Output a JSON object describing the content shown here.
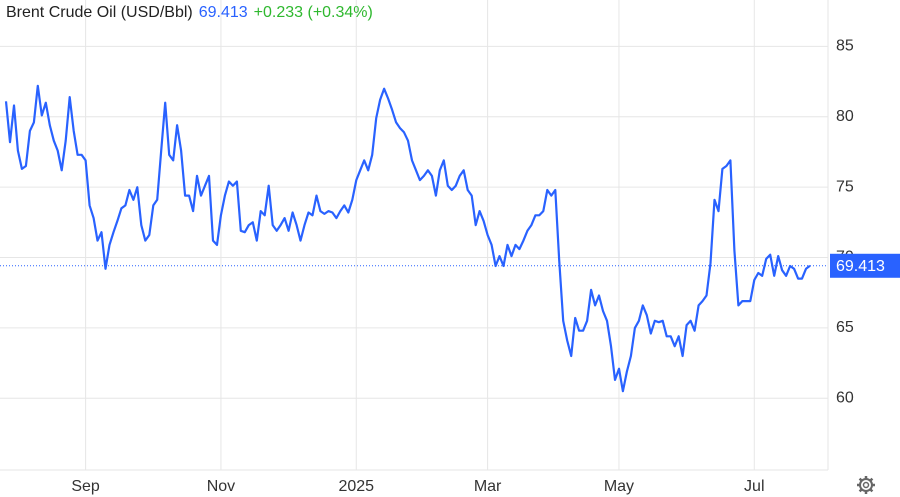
{
  "chart_data": {
    "type": "line",
    "title": "Brent Crude Oil (USD/Bbl)",
    "change": "+0.233 (+0.34%)",
    "categories": [
      null,
      null,
      null,
      null,
      null,
      null,
      null,
      null,
      null,
      null,
      null,
      null,
      null,
      null,
      null,
      null,
      null,
      null,
      null,
      null,
      "Sep",
      null,
      null,
      null,
      null,
      null,
      null,
      null,
      null,
      null,
      null,
      null,
      null,
      null,
      null,
      null,
      null,
      null,
      null,
      null,
      null,
      null,
      null,
      null,
      null,
      null,
      null,
      null,
      null,
      null,
      null,
      null,
      null,
      null,
      "Nov",
      null,
      null,
      null,
      null,
      null,
      null,
      null,
      null,
      null,
      null,
      null,
      null,
      null,
      null,
      null,
      null,
      null,
      null,
      null,
      null,
      null,
      null,
      null,
      null,
      null,
      null,
      null,
      null,
      null,
      null,
      null,
      null,
      null,
      "2025",
      null,
      null,
      null,
      null,
      null,
      null,
      null,
      null,
      null,
      null,
      null,
      null,
      null,
      null,
      null,
      null,
      null,
      null,
      null,
      null,
      null,
      null,
      null,
      null,
      null,
      null,
      null,
      null,
      null,
      null,
      null,
      null,
      "Mar",
      null,
      null,
      null,
      null,
      null,
      null,
      null,
      null,
      null,
      null,
      null,
      null,
      null,
      null,
      null,
      null,
      null,
      null,
      null,
      null,
      null,
      null,
      null,
      null,
      null,
      null,
      null,
      null,
      null,
      null,
      null,
      null,
      "May",
      null,
      null,
      null,
      null,
      null,
      null,
      null,
      null,
      null,
      null,
      null,
      null,
      null,
      null,
      null,
      null,
      null,
      null,
      null,
      null,
      null,
      null,
      null,
      null,
      null,
      null,
      null,
      null,
      null,
      null,
      null,
      null,
      null,
      "Jul",
      null,
      null,
      null,
      null,
      null,
      null,
      null,
      null,
      null,
      null,
      null,
      null,
      null,
      null
    ],
    "series": [
      {
        "name": "Brent Crude Oil (USD/Bbl)",
        "color": "#2962ff",
        "values": [
          81.1,
          78.2,
          80.8,
          77.6,
          76.3,
          76.5,
          79,
          79.6,
          82.2,
          80.1,
          81,
          79.4,
          78.3,
          77.6,
          76.2,
          78.3,
          81.4,
          79,
          77.3,
          77.3,
          76.9,
          73.7,
          72.8,
          71.2,
          71.8,
          69.2,
          70.9,
          71.8,
          72.6,
          73.5,
          73.7,
          74.8,
          74.1,
          75,
          72.3,
          71.2,
          71.6,
          73.7,
          74.1,
          77.6,
          81,
          77.3,
          76.9,
          79.4,
          77.6,
          74.4,
          74.4,
          73.3,
          75.8,
          74.4,
          75.1,
          75.8,
          71.2,
          70.9,
          73,
          74.4,
          75.4,
          75.1,
          75.4,
          71.9,
          71.8,
          72.3,
          72.5,
          71.2,
          73.3,
          73,
          75.1,
          72.3,
          71.9,
          72.3,
          72.8,
          71.9,
          73.2,
          72.3,
          71.2,
          72.3,
          73.2,
          73,
          74.4,
          73.3,
          73.1,
          73.3,
          73.2,
          72.8,
          73.3,
          73.7,
          73.2,
          74.1,
          75.5,
          76.2,
          76.9,
          76.2,
          77.3,
          79.9,
          81.2,
          82,
          81.3,
          80.5,
          79.6,
          79.2,
          78.9,
          78.3,
          76.9,
          76.2,
          75.5,
          75.8,
          76.2,
          75.8,
          74.4,
          76.2,
          76.9,
          75.1,
          74.8,
          75.1,
          75.8,
          76.2,
          74.8,
          74.4,
          72.3,
          73.3,
          72.6,
          71.6,
          70.9,
          69.4,
          70.1,
          69.4,
          70.9,
          70.1,
          70.9,
          70.6,
          71.2,
          71.9,
          72.3,
          73,
          73,
          73.3,
          74.8,
          74.4,
          74.8,
          69.8,
          65.5,
          64.1,
          63,
          65.7,
          64.8,
          64.8,
          65.5,
          67.7,
          66.6,
          67.3,
          66.2,
          65.5,
          63.7,
          61.3,
          62.1,
          60.5,
          61.9,
          63,
          65,
          65.5,
          66.6,
          65.9,
          64.6,
          65.5,
          65.4,
          65.5,
          64.4,
          64.4,
          63.7,
          64.4,
          63,
          65.2,
          65.5,
          64.8,
          66.6,
          66.9,
          67.3,
          69.6,
          74.1,
          73.3,
          76.3,
          76.5,
          76.9,
          70.5,
          66.6,
          66.9,
          66.9,
          66.9,
          68.4,
          68.9,
          68.7,
          69.9,
          70.2,
          68.7,
          70.1,
          69.1,
          68.7,
          69.4,
          69.2,
          68.5,
          68.5,
          69.2,
          69.413
        ]
      }
    ],
    "ylim": [
      54.9,
      88.3
    ],
    "yticks": [
      60,
      65,
      70,
      75,
      80,
      85
    ],
    "grid": true,
    "title_color": "#222222",
    "change_color": "#2eb82e"
  }
}
